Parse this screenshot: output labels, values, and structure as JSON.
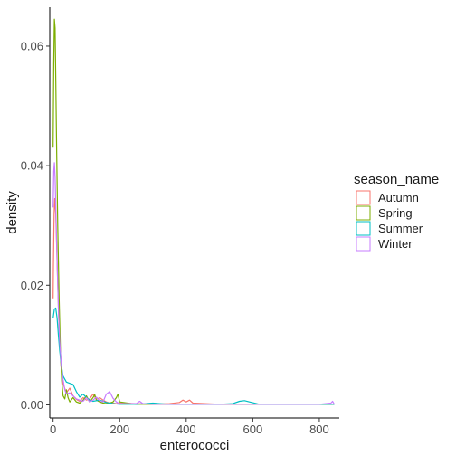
{
  "chart_data": {
    "type": "line",
    "xlabel": "enterococci",
    "ylabel": "density",
    "xlim": [
      -10,
      860
    ],
    "ylim": [
      -0.0022,
      0.0665
    ],
    "xticks": [
      0,
      200,
      400,
      600,
      800
    ],
    "yticks": [
      0.0,
      0.02,
      0.04,
      0.06
    ],
    "ytick_labels": [
      "0.00",
      "0.02",
      "0.04",
      "0.06"
    ],
    "legend": {
      "title": "season_name",
      "position": "right"
    },
    "grid": false,
    "series": [
      {
        "name": "Autumn",
        "color": "#F8766D",
        "x": [
          0,
          1,
          3,
          5,
          8,
          12,
          16,
          20,
          25,
          30,
          40,
          50,
          60,
          70,
          80,
          90,
          100,
          110,
          120,
          130,
          140,
          150,
          160,
          170,
          180,
          190,
          200,
          250,
          300,
          350,
          380,
          390,
          400,
          410,
          420,
          500,
          600,
          700,
          800,
          845
        ],
        "y": [
          0.0178,
          0.023,
          0.032,
          0.0345,
          0.032,
          0.024,
          0.016,
          0.01,
          0.0055,
          0.0035,
          0.002,
          0.0028,
          0.0015,
          0.0009,
          0.0006,
          0.0012,
          0.0008,
          0.001,
          0.0018,
          0.0009,
          0.0012,
          0.0008,
          0.0005,
          0.0003,
          0.0003,
          0.0002,
          0.0003,
          0.0002,
          0.0001,
          0.0002,
          0.0004,
          0.0008,
          0.0005,
          0.0008,
          0.0003,
          0.0001,
          0.0001,
          0.0001,
          0.0001,
          0.0001
        ]
      },
      {
        "name": "Spring",
        "color": "#7CAE00",
        "x": [
          0,
          2,
          4,
          6,
          8,
          10,
          14,
          18,
          22,
          26,
          30,
          35,
          40,
          45,
          50,
          60,
          70,
          80,
          90,
          100,
          110,
          120,
          125,
          130,
          140,
          150,
          160,
          170,
          180,
          190,
          195,
          200,
          250,
          300,
          400,
          500,
          600,
          700,
          800,
          845
        ],
        "y": [
          0.043,
          0.057,
          0.0645,
          0.063,
          0.055,
          0.045,
          0.03,
          0.018,
          0.009,
          0.004,
          0.0015,
          0.001,
          0.0025,
          0.0012,
          0.0005,
          0.0012,
          0.0005,
          0.0003,
          0.0008,
          0.0015,
          0.0005,
          0.0012,
          0.0017,
          0.0008,
          0.0005,
          0.0003,
          0.0002,
          0.0003,
          0.0005,
          0.0012,
          0.0018,
          0.0005,
          0.0001,
          0.0001,
          0.0001,
          0.0001,
          0.0001,
          0.0001,
          0.0001,
          0.0001
        ]
      },
      {
        "name": "Summer",
        "color": "#00BFC4",
        "x": [
          0,
          4,
          8,
          12,
          16,
          20,
          25,
          30,
          40,
          50,
          60,
          70,
          80,
          90,
          100,
          110,
          120,
          140,
          160,
          180,
          200,
          250,
          300,
          320,
          350,
          400,
          450,
          500,
          540,
          560,
          575,
          590,
          620,
          650,
          700,
          800,
          845
        ],
        "y": [
          0.0145,
          0.016,
          0.0162,
          0.0145,
          0.0115,
          0.009,
          0.0065,
          0.0048,
          0.0038,
          0.0036,
          0.0034,
          0.0022,
          0.0013,
          0.0018,
          0.0012,
          0.0008,
          0.0006,
          0.0008,
          0.0004,
          0.0002,
          0.0001,
          0.0001,
          0.0003,
          0.0002,
          0.0001,
          0.0001,
          0.0001,
          0.0001,
          0.0002,
          0.0006,
          0.0007,
          0.0005,
          0.0001,
          0.0001,
          0.0001,
          0.0001,
          0.0001
        ]
      },
      {
        "name": "Winter",
        "color": "#C77CFF",
        "x": [
          0,
          2,
          4,
          6,
          9,
          12,
          16,
          20,
          25,
          30,
          35,
          40,
          50,
          60,
          70,
          80,
          90,
          100,
          110,
          120,
          130,
          140,
          150,
          160,
          170,
          180,
          190,
          200,
          250,
          260,
          270,
          300,
          400,
          500,
          600,
          700,
          800,
          835,
          840,
          845
        ],
        "y": [
          0.033,
          0.039,
          0.0405,
          0.038,
          0.031,
          0.024,
          0.016,
          0.0105,
          0.0065,
          0.0042,
          0.0025,
          0.0018,
          0.002,
          0.0015,
          0.001,
          0.0008,
          0.0006,
          0.0012,
          0.0005,
          0.0008,
          0.0013,
          0.0007,
          0.0005,
          0.0018,
          0.0022,
          0.0011,
          0.0005,
          0.0002,
          0.0002,
          0.0006,
          0.0002,
          0.0001,
          0.0001,
          0.0001,
          0.0001,
          0.0001,
          0.0001,
          0.0003,
          0.0006,
          0.0001
        ]
      }
    ]
  }
}
